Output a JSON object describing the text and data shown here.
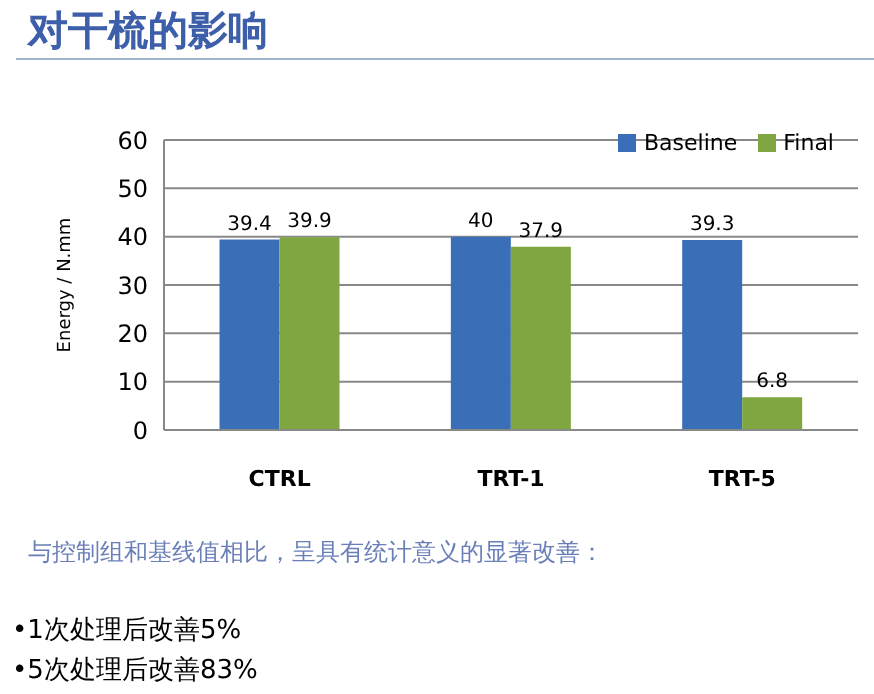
{
  "chart_data": {
    "type": "bar",
    "title": "对干梳的影响",
    "categories": [
      "CTRL",
      "TRT-1",
      "TRT-5"
    ],
    "series": [
      {
        "name": "Baseline",
        "color": "#3a6fb8",
        "values": [
          39.4,
          40,
          39.3
        ]
      },
      {
        "name": "Final",
        "color": "#7fa640",
        "values": [
          39.9,
          37.9,
          6.8
        ]
      }
    ],
    "ylabel": "Energy / N.mm",
    "ylim": [
      0,
      60
    ],
    "yticks": [
      0,
      10,
      20,
      30,
      40,
      50,
      60
    ],
    "grid": "y",
    "legend": "top right",
    "data_labels": true,
    "annotations": [
      "与控制组和基线值相比，呈具有统计意义的显著改善：",
      "•1次处理后改善5%",
      "•5次处理后改善83%"
    ]
  }
}
